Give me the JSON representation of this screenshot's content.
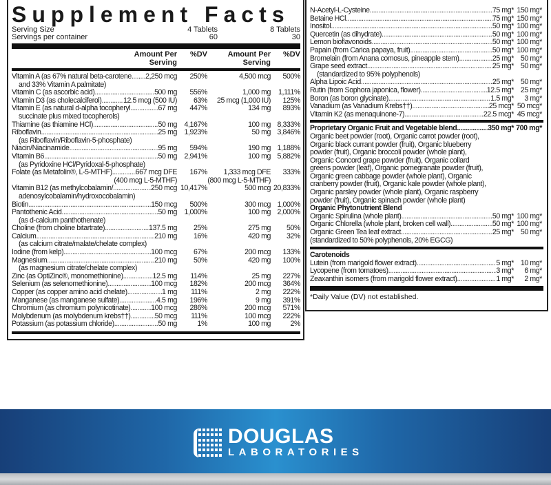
{
  "title": "Supplement Facts",
  "serving": {
    "size_label": "Serving Size",
    "size_1": "4 Tablets",
    "size_2": "8 Tablets",
    "per_container_label": "Servings per container",
    "per_container_1": "60",
    "per_container_2": "30"
  },
  "headers": {
    "amount_1": "Amount Per Serving",
    "dv_1": "%DV",
    "amount_2": "Amount Per Serving",
    "dv_2": "%DV"
  },
  "nutrients": [
    {
      "name": "Vitamin A (as 67% natural beta-carotene",
      "amt1": "2,250 mcg",
      "dv1": "250%",
      "amt2": "4,500 mcg",
      "dv2": "500%",
      "sub": "and 33% Vitamin A palmitate)"
    },
    {
      "name": "Vitamin C (as ascorbic acid)",
      "amt1": "500 mg",
      "dv1": "556%",
      "amt2": "1,000 mg",
      "dv2": "1,111%"
    },
    {
      "name": "Vitamin D3 (as cholecalciferol)",
      "amt1": "12.5 mcg (500 IU)",
      "dv1": "63%",
      "amt2": "25 mcg (1,000 IU)",
      "dv2": "125%"
    },
    {
      "name": "Vitamin E (as natural d-alpha tocopheryl",
      "amt1": "67 mg",
      "dv1": "447%",
      "amt2": "134 mg",
      "dv2": "893%",
      "sub": "succinate plus mixed tocopherols)"
    },
    {
      "name": "Thiamine (as thiamine HCl)",
      "amt1": "50 mg",
      "dv1": "4,167%",
      "amt2": "100 mg",
      "dv2": "8,333%"
    },
    {
      "name": "Riboflavin",
      "amt1": "25 mg",
      "dv1": "1,923%",
      "amt2": "50 mg",
      "dv2": "3,846%",
      "sub": "(as Riboflavin/Riboflavin-5-phosphate)"
    },
    {
      "name": "Niacin/Niacinamide",
      "amt1": "95 mg",
      "dv1": "594%",
      "amt2": "190 mg",
      "dv2": "1,188%"
    },
    {
      "name": "Vitamin B6",
      "amt1": "50 mg",
      "dv1": "2,941%",
      "amt2": "100 mg",
      "dv2": "5,882%",
      "sub": "(as Pyridoxine HCl/Pyridoxal-5-phosphate)"
    },
    {
      "name": "Folate (as Metafolin®, L-5-MTHF)",
      "amt1": "667 mcg DFE",
      "dv1": "167%",
      "amt2": "1,333 mcg DFE",
      "dv2": "333%",
      "sub1": "(400 mcg L-5-MTHF)",
      "sub2": "(800 mcg L-5-MTHF)"
    },
    {
      "name": "Vitamin B12 (as methylcobalamin/",
      "amt1": "250 mcg",
      "dv1": "10,417%",
      "amt2": "500 mcg",
      "dv2": "20,833%",
      "sub": "adenosylcobalamin/hydroxocobalamin)"
    },
    {
      "name": "Biotin",
      "amt1": "150 mcg",
      "dv1": "500%",
      "amt2": "300 mcg",
      "dv2": "1,000%"
    },
    {
      "name": "Pantothenic Acid",
      "amt1": "50 mg",
      "dv1": "1,000%",
      "amt2": "100 mg",
      "dv2": "2,000%",
      "sub": "(as d-calcium panthothenate)"
    },
    {
      "name": "Choline (from choline bitartrate)",
      "amt1": "137.5 mg",
      "dv1": "25%",
      "amt2": "275 mg",
      "dv2": "50%"
    },
    {
      "name": "Calcium",
      "amt1": "210 mg",
      "dv1": "16%",
      "amt2": "420 mg",
      "dv2": "32%",
      "sub": "(as calcium citrate/malate/chelate complex)"
    },
    {
      "name": "Iodine (from kelp)",
      "amt1": "100 mcg",
      "dv1": "67%",
      "amt2": "200 mcg",
      "dv2": "133%"
    },
    {
      "name": "Magnesium",
      "amt1": "210 mg",
      "dv1": "50%",
      "amt2": "420 mg",
      "dv2": "100%",
      "sub": "(as magnesium citrate/chelate complex)"
    },
    {
      "name": "Zinc (as OptiZinc®, monomethionine)",
      "amt1": "12.5 mg",
      "dv1": "114%",
      "amt2": "25 mg",
      "dv2": "227%"
    },
    {
      "name": "Selenium (as selenomethionine)",
      "amt1": "100 mcg",
      "dv1": "182%",
      "amt2": "200 mcg",
      "dv2": "364%"
    },
    {
      "name": "Copper (as copper amino acid chelate)",
      "amt1": "1 mg",
      "dv1": "111%",
      "amt2": "2 mg",
      "dv2": "222%"
    },
    {
      "name": "Manganese (as manganese sulfate)",
      "amt1": "4.5 mg",
      "dv1": "196%",
      "amt2": "9 mg",
      "dv2": "391%"
    },
    {
      "name": "Chromium (as chromium polynicotinate)",
      "amt1": "100 mcg",
      "dv1": "286%",
      "amt2": "200 mcg",
      "dv2": "571%"
    },
    {
      "name": "Molybdenum (as molybdenum krebs††)",
      "amt1": "50 mcg",
      "dv1": "111%",
      "amt2": "100 mcg",
      "dv2": "222%"
    },
    {
      "name": "Potassium (as potassium chloride)",
      "amt1": "50 mg",
      "dv1": "1%",
      "amt2": "100 mg",
      "dv2": "2%"
    }
  ],
  "others": [
    {
      "name": "N-Acetyl-L-Cysteine",
      "amt1": "75 mg*",
      "amt2": "150 mg*"
    },
    {
      "name": "Betaine HCl",
      "amt1": "75 mg*",
      "amt2": "150 mg*"
    },
    {
      "name": "Inositol",
      "amt1": "50 mg*",
      "amt2": "100 mg*"
    },
    {
      "name": "Quercetin (as dihydrate)",
      "amt1": "50 mg*",
      "amt2": "100 mg*"
    },
    {
      "name": "Lemon bioflavonoids",
      "amt1": "50 mg*",
      "amt2": "100 mg*"
    },
    {
      "name": "Papain (from Carica papaya, fruit)",
      "amt1": "50 mg*",
      "amt2": "100 mg*"
    },
    {
      "name": "Bromelain (from Anana comosus, pineapple stem)",
      "amt1": "25 mg*",
      "amt2": "50 mg*"
    },
    {
      "name": "Grape seed extract",
      "amt1": "25 mg*",
      "amt2": "50 mg*",
      "sub": "(standardized to 95% polyphenols)"
    },
    {
      "name": "Alpha Lipoic Acid",
      "amt1": "25 mg*",
      "amt2": "50 mg*"
    },
    {
      "name": "Rutin (from Sophora japonica, flower)",
      "amt1": "12.5 mg*",
      "amt2": "25 mg*"
    },
    {
      "name": "Boron (as boron glycinate)",
      "amt1": "1.5 mg*",
      "amt2": "3 mg*"
    },
    {
      "name": "Vanadium (as Vanadium Krebs††)",
      "amt1": "25 mcg*",
      "amt2": "50 mcg*"
    },
    {
      "name": "Vitamin K2 (as menaquinone-7)",
      "amt1": "22.5 mcg*",
      "amt2": "45 mcg*"
    }
  ],
  "blend": {
    "name": "Proprietary Organic Fruit and Vegetable blend",
    "amt1": "350 mg*",
    "amt2": "700 mg*",
    "lines": [
      "Organic beet powder (root), Organic carrot powder (root),",
      "Organic black currant powder (fruit), Organic blueberry",
      "powder (fruit), Organic broccoli powder (whole plant),",
      "Organic Concord grape powder (fruit), Organic collard",
      "greens powder (leaf), Organic pomegranate powder (fruit),",
      "Organic green cabbage powder (whole plant), Organic",
      "cranberry powder (fruit), Organic kale powder (whole plant),",
      "Organic parsley powder (whole plant), Organic raspberry",
      "powder (fruit), Organic spinach powder (whole plant)"
    ]
  },
  "phyto": {
    "title": "Organic Phytonutrient Blend",
    "items": [
      {
        "name": "Organic Spirulina (whole plant)",
        "amt1": "50 mg*",
        "amt2": "100 mg*"
      },
      {
        "name": "Organic Chlorella (whole plant, broken cell wall)",
        "amt1": "50 mg*",
        "amt2": "100 mg*"
      },
      {
        "name": "Organic Green Tea leaf extract",
        "amt1": "25 mg*",
        "amt2": "50 mg*",
        "sub": "(standardized to 50% polyphenols, 20% EGCG)"
      }
    ]
  },
  "carotenoids": {
    "title": "Carotenoids",
    "items": [
      {
        "name": "Lutein (from marigold flower extract)",
        "amt1": "5 mg*",
        "amt2": "10 mg*"
      },
      {
        "name": "Lycopene (from tomatoes)",
        "amt1": "3 mg*",
        "amt2": "6 mg*"
      },
      {
        "name": "Zeaxanthin isomers (from marigold flower extract)",
        "amt1": "1 mg*",
        "amt2": "2 mg*"
      }
    ]
  },
  "footnote": "*Daily Value (DV) not established.",
  "brand": {
    "name": "DOUGLAS",
    "sub": "LABORATORIES",
    "colors": {
      "band": "#1f67a8",
      "band_center": "#2a90cf",
      "text": "#ffffff"
    }
  }
}
